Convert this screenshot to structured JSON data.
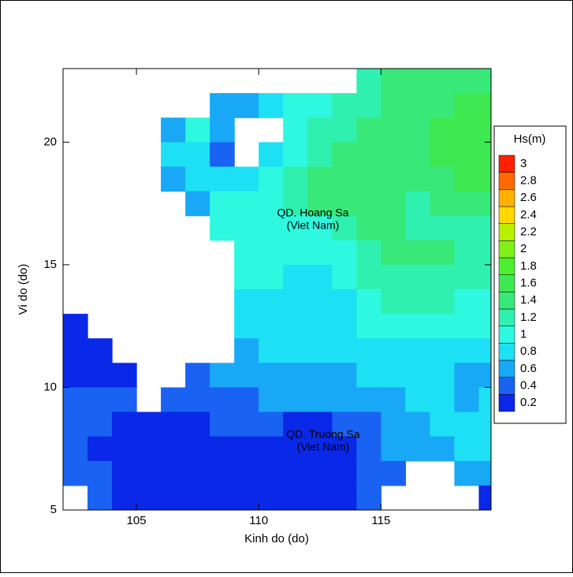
{
  "chart_data": {
    "type": "contour",
    "x_label": "Kinh do (do)",
    "y_label": "Vi do (do)",
    "xlim": [
      102,
      119.5
    ],
    "ylim": [
      5,
      23
    ],
    "xticks": [
      105,
      110,
      115
    ],
    "yticks": [
      5,
      10,
      15,
      20
    ],
    "annotations": [
      "QD. Hoang Sa",
      "(Viet Nam)",
      "QD. Truong Sa",
      "(Viet Nam)"
    ],
    "colorbar": {
      "title": "Hs(m)",
      "levels": [
        0.2,
        0.4,
        0.6,
        0.8,
        1,
        1.2,
        1.4,
        1.6,
        1.8,
        2,
        2.2,
        2.4,
        2.6,
        2.8,
        3
      ],
      "colors": [
        "#0a28e8",
        "#1a62f2",
        "#18a8f6",
        "#1ee0f4",
        "#2ef8e0",
        "#30f0b0",
        "#38e878",
        "#3ee850",
        "#4cf030",
        "#80f018",
        "#b8f000",
        "#ffd800",
        "#ffb000",
        "#ff6a00",
        "#ff2000"
      ]
    },
    "field": {
      "x": [
        102.5,
        103.5,
        104.5,
        105.5,
        106.5,
        107.5,
        108.5,
        109.5,
        110.5,
        111.5,
        112.5,
        113.5,
        114.5,
        115.5,
        116.5,
        117.5,
        118.5,
        119.5
      ],
      "y": [
        22.5,
        21.5,
        20.5,
        19.5,
        18.5,
        17.5,
        16.5,
        15.5,
        14.5,
        13.5,
        12.5,
        11.5,
        10.5,
        9.5,
        8.5,
        7.5,
        6.5,
        5.5
      ],
      "values": [
        [
          null,
          null,
          null,
          null,
          null,
          null,
          null,
          null,
          null,
          null,
          null,
          null,
          1.3,
          1.4,
          1.5,
          1.5,
          1.5,
          1.5
        ],
        [
          null,
          null,
          null,
          null,
          null,
          null,
          0.6,
          0.6,
          0.8,
          1.0,
          1.1,
          1.2,
          1.3,
          1.4,
          1.5,
          1.5,
          1.6,
          1.6
        ],
        [
          null,
          null,
          null,
          null,
          0.6,
          1.0,
          0.6,
          null,
          null,
          1.1,
          1.2,
          1.3,
          1.4,
          1.5,
          1.5,
          1.6,
          1.6,
          1.6
        ],
        [
          null,
          null,
          null,
          null,
          0.8,
          0.9,
          0.5,
          null,
          0.8,
          1.1,
          1.3,
          1.4,
          1.5,
          1.5,
          1.5,
          1.6,
          1.7,
          1.7
        ],
        [
          null,
          null,
          null,
          null,
          0.7,
          0.8,
          0.8,
          0.9,
          1.0,
          1.2,
          1.4,
          1.5,
          1.5,
          1.5,
          1.5,
          1.5,
          1.6,
          1.6
        ],
        [
          null,
          null,
          null,
          null,
          null,
          0.7,
          1.0,
          1.1,
          1.1,
          1.2,
          1.4,
          1.4,
          1.4,
          1.4,
          1.3,
          1.4,
          1.4,
          1.4
        ],
        [
          null,
          null,
          null,
          null,
          null,
          null,
          1.1,
          1.1,
          1.1,
          1.1,
          1.1,
          1.3,
          1.4,
          1.4,
          1.3,
          1.3,
          1.3,
          1.3
        ],
        [
          null,
          null,
          null,
          null,
          null,
          null,
          null,
          1.1,
          1.0,
          1.0,
          1.0,
          1.1,
          1.3,
          1.4,
          1.4,
          1.4,
          1.3,
          1.3
        ],
        [
          null,
          null,
          null,
          null,
          null,
          null,
          null,
          1.1,
          1.0,
          0.9,
          0.9,
          1.0,
          1.2,
          1.3,
          1.3,
          1.3,
          1.2,
          1.2
        ],
        [
          null,
          null,
          null,
          null,
          null,
          null,
          null,
          0.9,
          0.9,
          0.9,
          0.9,
          0.9,
          1.1,
          1.2,
          1.2,
          1.2,
          1.1,
          1.1
        ],
        [
          0.3,
          null,
          null,
          null,
          null,
          null,
          null,
          0.8,
          0.8,
          0.8,
          0.8,
          0.9,
          1.0,
          1.0,
          1.0,
          1.0,
          1.0,
          1.0
        ],
        [
          0.3,
          0.3,
          null,
          null,
          null,
          null,
          null,
          0.7,
          0.8,
          0.8,
          0.8,
          0.8,
          0.8,
          0.8,
          0.9,
          0.9,
          0.9,
          0.8
        ],
        [
          0.3,
          0.3,
          0.3,
          null,
          null,
          0.5,
          0.6,
          0.6,
          0.7,
          0.7,
          0.7,
          0.7,
          0.8,
          0.8,
          0.9,
          0.9,
          0.7,
          0.6
        ],
        [
          0.5,
          0.5,
          0.5,
          null,
          0.4,
          0.4,
          0.4,
          0.5,
          0.6,
          0.6,
          0.6,
          0.6,
          0.6,
          0.7,
          0.9,
          0.9,
          0.6,
          0.8
        ],
        [
          0.4,
          0.5,
          0.3,
          0.3,
          0.3,
          0.3,
          0.4,
          0.4,
          0.4,
          0.3,
          0.3,
          0.4,
          0.5,
          0.6,
          0.7,
          0.8,
          0.9,
          0.9
        ],
        [
          0.4,
          0.3,
          0.3,
          0.3,
          0.3,
          0.3,
          0.3,
          0.3,
          0.3,
          0.3,
          0.3,
          0.3,
          0.5,
          0.6,
          0.7,
          0.7,
          0.8,
          0.8
        ],
        [
          0.5,
          0.4,
          0.3,
          0.3,
          0.3,
          0.3,
          0.3,
          0.3,
          0.3,
          0.3,
          0.3,
          0.3,
          0.4,
          0.5,
          null,
          null,
          0.6,
          0.7
        ],
        [
          null,
          0.4,
          0.3,
          0.3,
          0.3,
          0.3,
          0.3,
          0.3,
          0.3,
          0.3,
          0.3,
          0.3,
          0.4,
          null,
          null,
          null,
          null,
          0.3
        ]
      ]
    }
  }
}
